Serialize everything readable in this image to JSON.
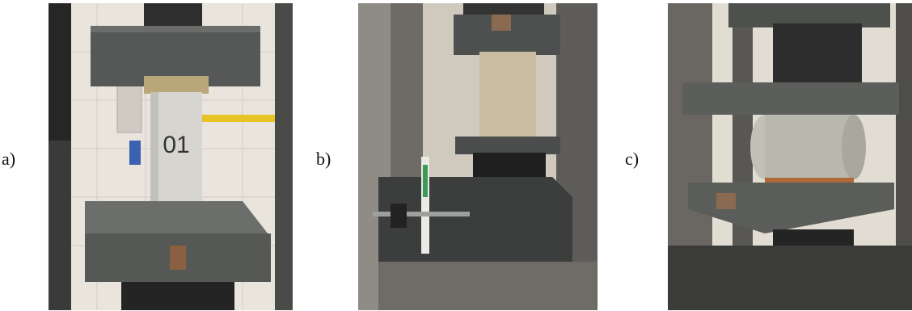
{
  "figure": {
    "panels": [
      {
        "label": "a)",
        "specimen_marking": "01"
      },
      {
        "label": "b)"
      },
      {
        "label": "c)"
      }
    ]
  }
}
